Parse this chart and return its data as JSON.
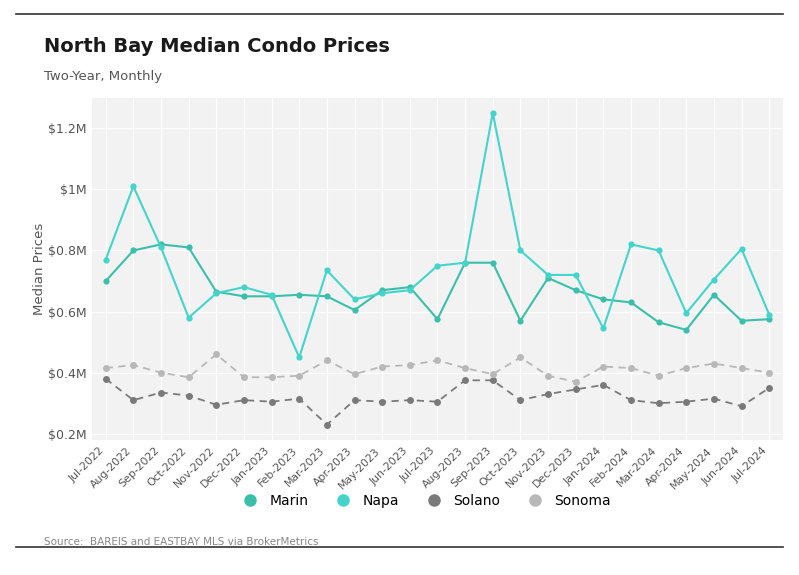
{
  "title": "North Bay Median Condo Prices",
  "subtitle": "Two-Year, Monthly",
  "ylabel": "Median Prices",
  "source": "Source:  BAREIS and EASTBAY MLS via BrokerMetrics",
  "ylim": [
    180000,
    1300000
  ],
  "yticks": [
    200000,
    400000,
    600000,
    800000,
    1000000,
    1200000
  ],
  "ytick_labels": [
    "$0.2M",
    "$0.4M",
    "$0.6M",
    "$0.8M",
    "$1M",
    "$1.2M"
  ],
  "months": [
    "Jul-2022",
    "Aug-2022",
    "Sep-2022",
    "Oct-2022",
    "Nov-2022",
    "Dec-2022",
    "Jan-2023",
    "Feb-2023",
    "Mar-2023",
    "Apr-2023",
    "May-2023",
    "Jun-2023",
    "Jul-2023",
    "Aug-2023",
    "Sep-2023",
    "Oct-2023",
    "Nov-2023",
    "Dec-2023",
    "Jan-2024",
    "Feb-2024",
    "Mar-2024",
    "Apr-2024",
    "May-2024",
    "Jun-2024",
    "Jul-2024"
  ],
  "marin": [
    700000,
    800000,
    820000,
    810000,
    665000,
    650000,
    650000,
    655000,
    650000,
    605000,
    670000,
    680000,
    575000,
    760000,
    760000,
    570000,
    710000,
    670000,
    640000,
    630000,
    565000,
    540000,
    655000,
    570000,
    575000
  ],
  "napa": [
    770000,
    1010000,
    810000,
    580000,
    660000,
    680000,
    655000,
    450000,
    735000,
    640000,
    660000,
    670000,
    750000,
    760000,
    1250000,
    800000,
    720000,
    720000,
    545000,
    820000,
    800000,
    595000,
    705000,
    805000,
    590000
  ],
  "solano": [
    380000,
    310000,
    335000,
    325000,
    295000,
    310000,
    305000,
    315000,
    230000,
    310000,
    305000,
    310000,
    305000,
    375000,
    375000,
    310000,
    330000,
    345000,
    360000,
    310000,
    300000,
    305000,
    315000,
    290000,
    350000
  ],
  "sonoma": [
    415000,
    425000,
    400000,
    385000,
    460000,
    385000,
    385000,
    390000,
    440000,
    395000,
    420000,
    425000,
    440000,
    415000,
    395000,
    450000,
    390000,
    370000,
    420000,
    415000,
    390000,
    415000,
    430000,
    415000,
    400000
  ],
  "marin_color": "#3bbfaa",
  "napa_color": "#44d4cc",
  "solano_color": "#7a7a7a",
  "sonoma_color": "#b8b8b8",
  "bg_color": "#f2f2f2",
  "border_color": "#333333"
}
